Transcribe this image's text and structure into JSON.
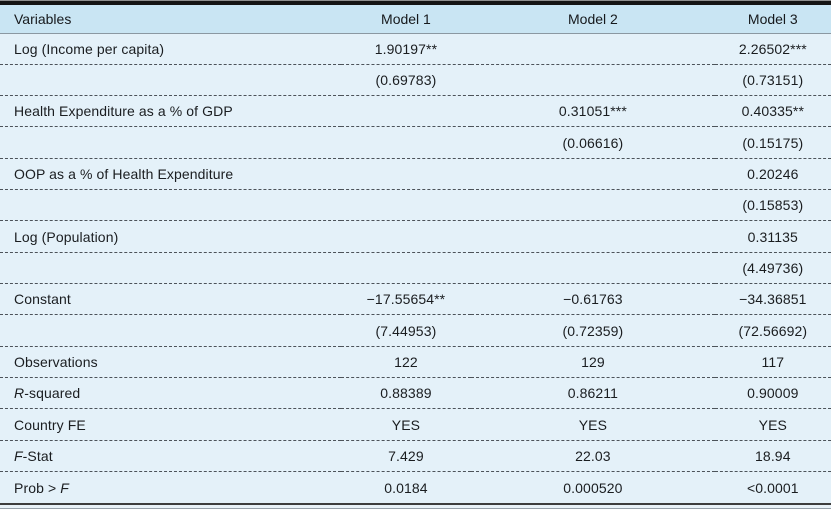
{
  "colors": {
    "header_bg": "#c9e5f3",
    "body_bg": "#e4f1f9",
    "top_rule": "#141414",
    "bottom_rule": "#3d3d3d",
    "dash_separator": "#4c535a",
    "text": "#1a1d20"
  },
  "table": {
    "columns": [
      {
        "key": "variables",
        "label": "Variables"
      },
      {
        "key": "model1",
        "label": "Model 1"
      },
      {
        "key": "model2",
        "label": "Model 2"
      },
      {
        "key": "model3",
        "label": "Model 3"
      }
    ],
    "rows": [
      {
        "cells": [
          "Log (Income per capita)",
          "1.90197**",
          "",
          "2.26502***"
        ]
      },
      {
        "cells": [
          "",
          "(0.69783)",
          "",
          "(0.73151)"
        ]
      },
      {
        "cells": [
          "Health Expenditure as a % of GDP",
          "",
          "0.31051***",
          "0.40335**"
        ]
      },
      {
        "cells": [
          "",
          "",
          "(0.06616)",
          "(0.15175)"
        ]
      },
      {
        "cells": [
          "OOP as a % of Health Expenditure",
          "",
          "",
          "0.20246"
        ]
      },
      {
        "cells": [
          "",
          "",
          "",
          "(0.15853)"
        ]
      },
      {
        "cells": [
          "Log (Population)",
          "",
          "",
          "0.31135"
        ]
      },
      {
        "cells": [
          "",
          "",
          "",
          "(4.49736)"
        ]
      },
      {
        "cells": [
          "Constant",
          "−17.55654**",
          "−0.61763",
          "−34.36851"
        ]
      },
      {
        "cells": [
          "",
          "(7.44953)",
          "(0.72359)",
          "(72.56692)"
        ]
      },
      {
        "cells": [
          "Observations",
          "122",
          "129",
          "117"
        ]
      },
      {
        "cells": [
          {
            "segments": [
              {
                "t": "R",
                "i": true
              },
              {
                "t": "-squared"
              }
            ]
          },
          "0.88389",
          "0.86211",
          "0.90009"
        ]
      },
      {
        "cells": [
          "Country FE",
          "YES",
          "YES",
          "YES"
        ]
      },
      {
        "cells": [
          {
            "segments": [
              {
                "t": "F",
                "i": true
              },
              {
                "t": "-Stat"
              }
            ]
          },
          "7.429",
          "22.03",
          "18.94"
        ]
      },
      {
        "cells": [
          {
            "segments": [
              {
                "t": "Prob > "
              },
              {
                "t": "F",
                "i": true
              }
            ]
          },
          "0.0184",
          "0.000520",
          "<0.0001"
        ]
      }
    ]
  }
}
